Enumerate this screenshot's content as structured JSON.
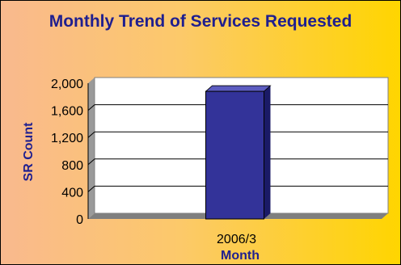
{
  "chart_data": {
    "type": "bar",
    "title": "Monthly Trend of Services Requested",
    "xlabel": "Month",
    "ylabel": "SR Count",
    "categories": [
      "2006/3"
    ],
    "values": [
      1880
    ],
    "ylim": [
      0,
      2000
    ],
    "yticks": [
      "0",
      "400",
      "800",
      "1,200",
      "1,600",
      "2,000"
    ],
    "grid": true,
    "bar_color": "#333399",
    "background_gradient": [
      "#f9b98e",
      "#ffd500"
    ],
    "title_color": "#1f1f8f"
  }
}
